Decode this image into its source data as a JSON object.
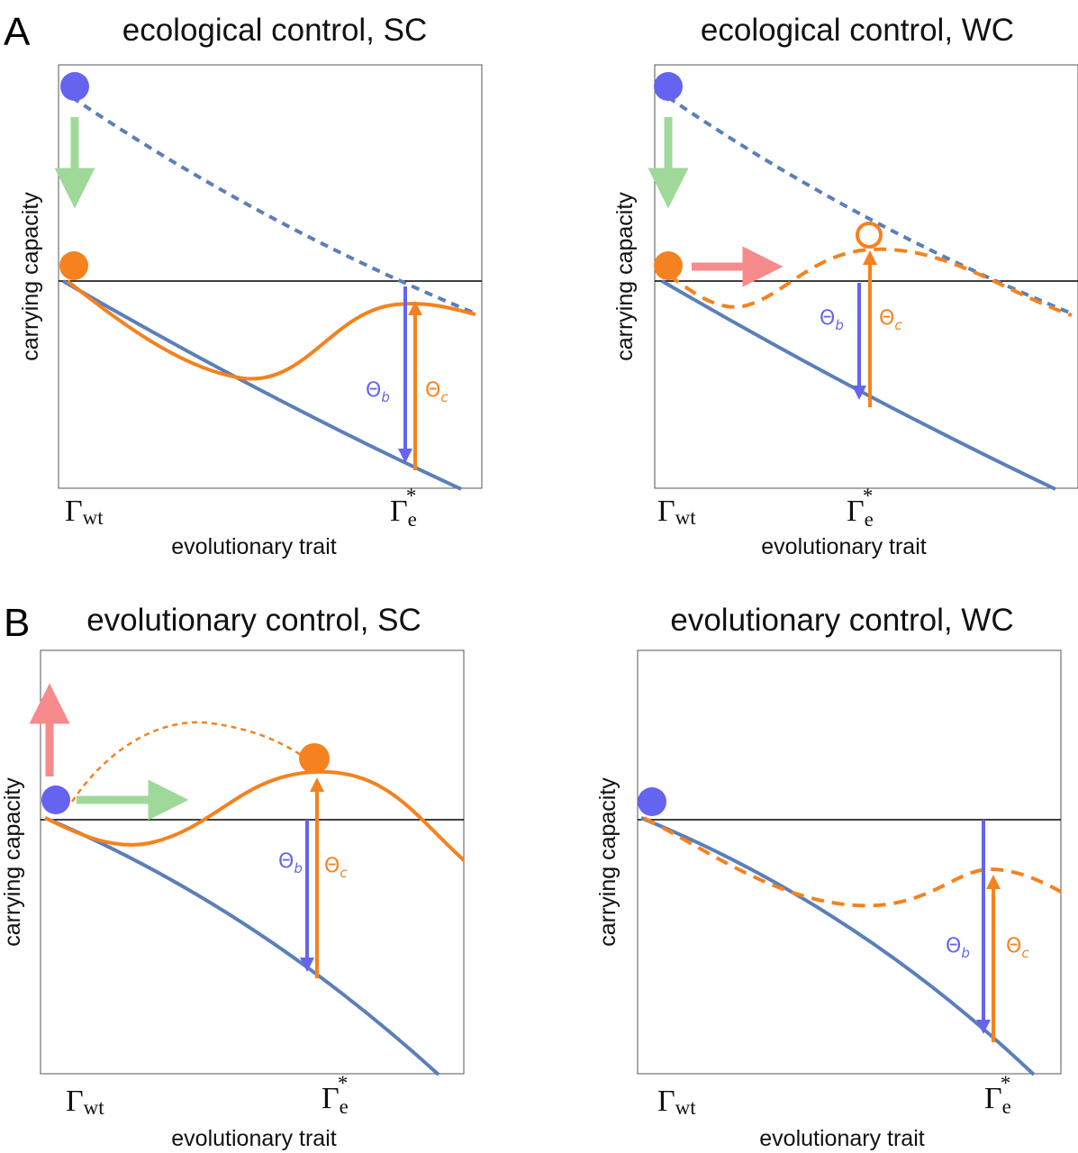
{
  "figure": {
    "panel_labels": {
      "a": "A",
      "b": "B"
    },
    "panels": [
      {
        "id": "eco-sc",
        "title": "ecological control, SC",
        "ylabel": "carrying capacity",
        "xlabel": "evolutionary trait",
        "tick_left": "Γ",
        "tick_left_sub": "wt",
        "tick_right": "Γ",
        "tick_right_sub": "e",
        "tick_right_sup": "*",
        "theta_b": "Θ",
        "theta_b_sub": "b",
        "theta_c": "Θ",
        "theta_c_sub": "c"
      },
      {
        "id": "eco-wc",
        "title": "ecological control, WC",
        "ylabel": "carrying capacity",
        "xlabel": "evolutionary trait",
        "tick_left": "Γ",
        "tick_left_sub": "wt",
        "tick_right": "Γ",
        "tick_right_sub": "e",
        "tick_right_sup": "*",
        "theta_b": "Θ",
        "theta_b_sub": "b",
        "theta_c": "Θ",
        "theta_c_sub": "c"
      },
      {
        "id": "evo-sc",
        "title": "evolutionary control, SC",
        "ylabel": "carrying capacity",
        "xlabel": "evolutionary trait",
        "tick_left": "Γ",
        "tick_left_sub": "wt",
        "tick_right": "Γ",
        "tick_right_sub": "e",
        "tick_right_sup": "*",
        "theta_b": "Θ",
        "theta_b_sub": "b",
        "theta_c": "Θ",
        "theta_c_sub": "c"
      },
      {
        "id": "evo-wc",
        "title": "evolutionary control, WC",
        "ylabel": "carrying capacity",
        "xlabel": "evolutionary trait",
        "tick_left": "Γ",
        "tick_left_sub": "wt",
        "tick_right": "Γ",
        "tick_right_sub": "e",
        "tick_right_sup": "*",
        "theta_b": "Θ",
        "theta_b_sub": "b",
        "theta_c": "Θ",
        "theta_c_sub": "c"
      }
    ],
    "colors": {
      "blue_marker": "#6464f0",
      "blue_curve": "#5b7fb8",
      "orange": "#f5821f",
      "green_arrow": "#9fd99a",
      "red_arrow": "#f78a8a",
      "theta_b_arrow": "#6464f0",
      "theta_c_arrow": "#f5821f"
    }
  }
}
